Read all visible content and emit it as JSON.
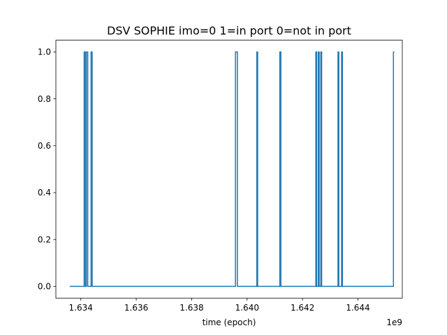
{
  "chart_data": {
    "type": "line",
    "title": "DSV SOPHIE imo=0 1=in port 0=not in port",
    "xlabel": "time (epoch)",
    "ylabel": "",
    "x_offset_label": "1e9",
    "x_scale": 1000000000.0,
    "xlim": [
      1.6331,
      1.6456
    ],
    "ylim": [
      -0.05,
      1.05
    ],
    "x_ticks": [
      1.634,
      1.636,
      1.638,
      1.64,
      1.642,
      1.644
    ],
    "x_tick_labels": [
      "1.634",
      "1.636",
      "1.638",
      "1.640",
      "1.642",
      "1.644"
    ],
    "y_ticks": [
      0.0,
      0.2,
      0.4,
      0.6,
      0.8,
      1.0
    ],
    "y_tick_labels": [
      "0.0",
      "0.2",
      "0.4",
      "0.6",
      "0.8",
      "1.0"
    ],
    "grid": false,
    "series": [
      {
        "color": "#1f77b4",
        "x": [
          1.6336,
          1.63412,
          1.63412,
          1.63416,
          1.63416,
          1.6342,
          1.6342,
          1.63425,
          1.63425,
          1.63437,
          1.63437,
          1.63441,
          1.63441,
          1.63958,
          1.63958,
          1.63965,
          1.63965,
          1.64035,
          1.64035,
          1.64038,
          1.64038,
          1.64118,
          1.64118,
          1.64122,
          1.64122,
          1.64248,
          1.64248,
          1.64251,
          1.64251,
          1.64257,
          1.64257,
          1.6426,
          1.6426,
          1.64266,
          1.64266,
          1.64269,
          1.64269,
          1.64328,
          1.64328,
          1.64331,
          1.64331,
          1.64341,
          1.64341,
          1.64344,
          1.64344,
          1.64528,
          1.64528,
          1.64531
        ],
        "y": [
          0,
          0,
          1,
          1,
          0,
          0,
          1,
          1,
          0,
          0,
          1,
          1,
          0,
          0,
          1,
          1,
          0,
          0,
          1,
          1,
          0,
          0,
          1,
          1,
          0,
          0,
          1,
          1,
          0,
          0,
          1,
          1,
          0,
          0,
          1,
          1,
          0,
          0,
          1,
          1,
          0,
          0,
          1,
          1,
          0,
          0,
          1,
          1
        ]
      }
    ]
  }
}
